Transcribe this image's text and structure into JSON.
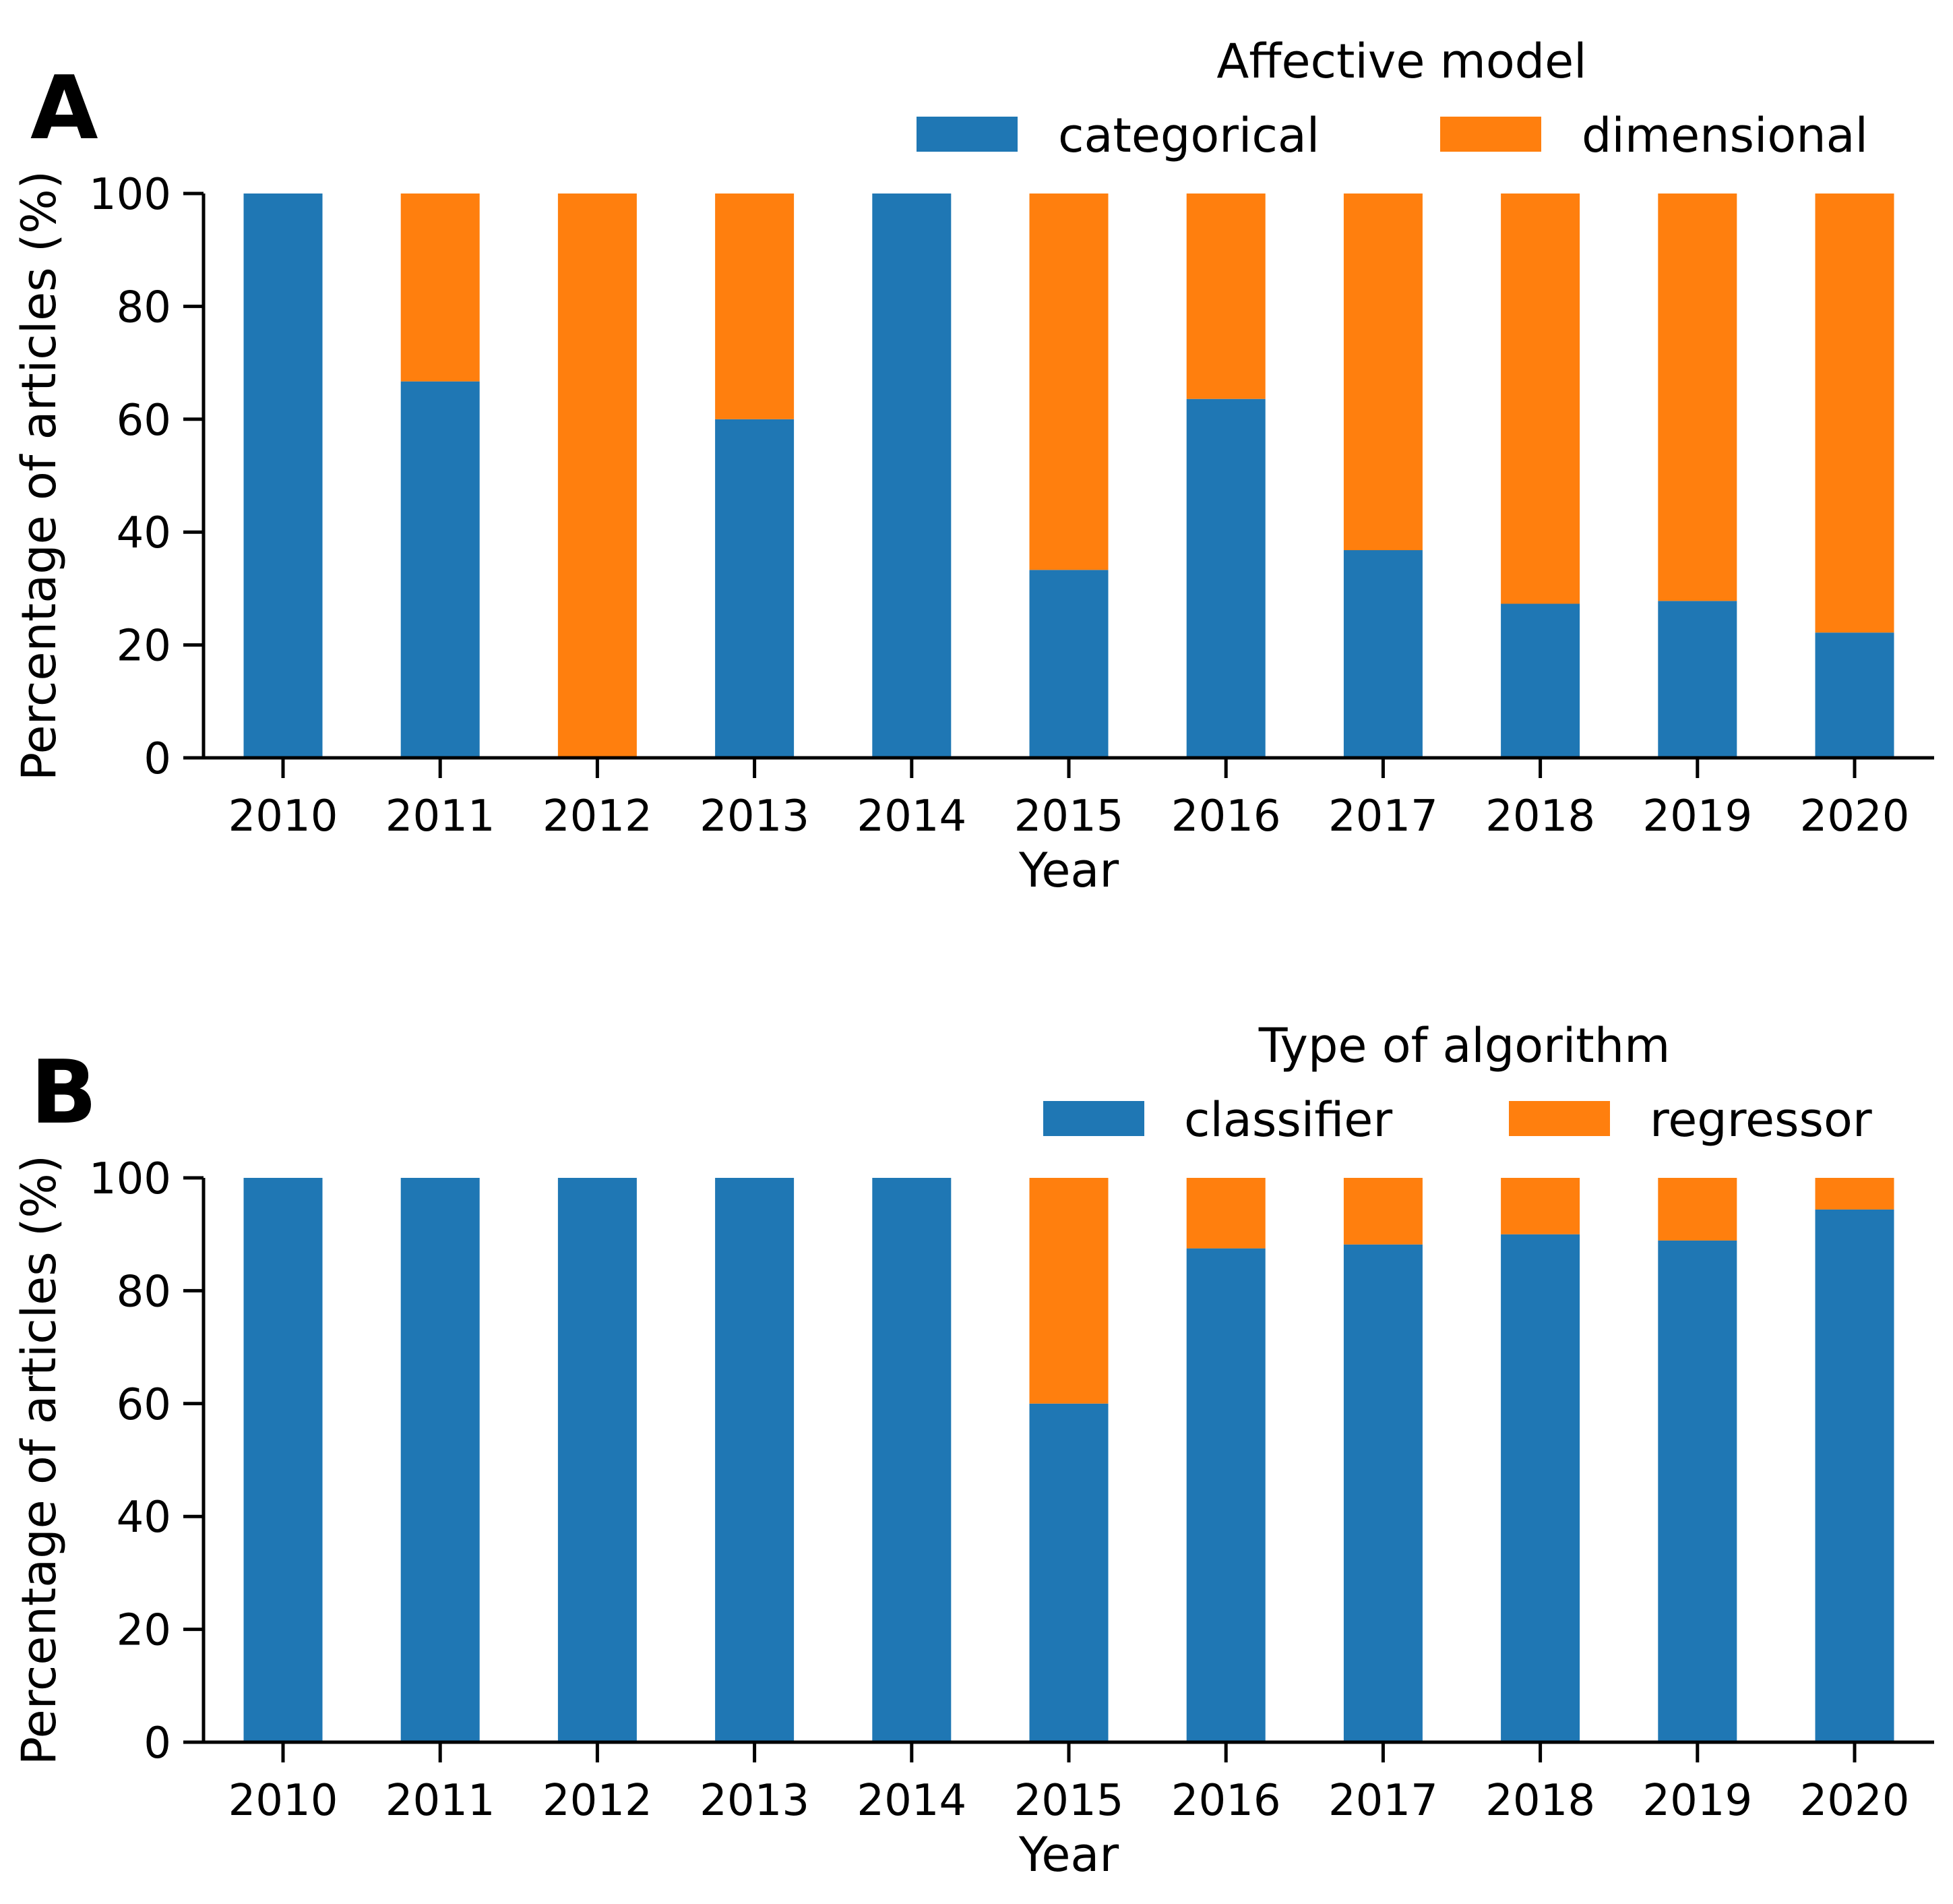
{
  "chart_data": [
    {
      "type": "bar",
      "stacked": true,
      "panel_label": "A",
      "legend_title": "Affective model",
      "legend_position": "top-right",
      "xlabel": "Year",
      "ylabel": "Percentage of articles (%)",
      "ylim": [
        0,
        100
      ],
      "yticks": [
        0,
        20,
        40,
        60,
        80,
        100
      ],
      "grid": false,
      "categories": [
        "2010",
        "2011",
        "2012",
        "2013",
        "2014",
        "2015",
        "2016",
        "2017",
        "2018",
        "2019",
        "2020"
      ],
      "series": [
        {
          "name": "categorical",
          "color": "#1f77b4",
          "values": [
            100,
            66.7,
            0,
            60,
            100,
            33.3,
            63.6,
            36.8,
            27.3,
            27.8,
            22.2
          ]
        },
        {
          "name": "dimensional",
          "color": "#ff7f0e",
          "values": [
            0,
            33.3,
            100,
            40,
            0,
            66.7,
            36.4,
            63.2,
            72.7,
            72.2,
            77.8
          ]
        }
      ]
    },
    {
      "type": "bar",
      "stacked": true,
      "panel_label": "B",
      "legend_title": "Type of algorithm",
      "legend_position": "top-right",
      "xlabel": "Year",
      "ylabel": "Percentage of articles (%)",
      "ylim": [
        0,
        100
      ],
      "yticks": [
        0,
        20,
        40,
        60,
        80,
        100
      ],
      "grid": false,
      "categories": [
        "2010",
        "2011",
        "2012",
        "2013",
        "2014",
        "2015",
        "2016",
        "2017",
        "2018",
        "2019",
        "2020"
      ],
      "series": [
        {
          "name": "classifier",
          "color": "#1f77b4",
          "values": [
            100,
            100,
            100,
            100,
            100,
            60,
            87.5,
            88.2,
            90,
            88.9,
            94.4
          ]
        },
        {
          "name": "regressor",
          "color": "#ff7f0e",
          "values": [
            0,
            0,
            0,
            0,
            0,
            40,
            12.5,
            11.8,
            10,
            11.1,
            5.6
          ]
        }
      ]
    }
  ]
}
